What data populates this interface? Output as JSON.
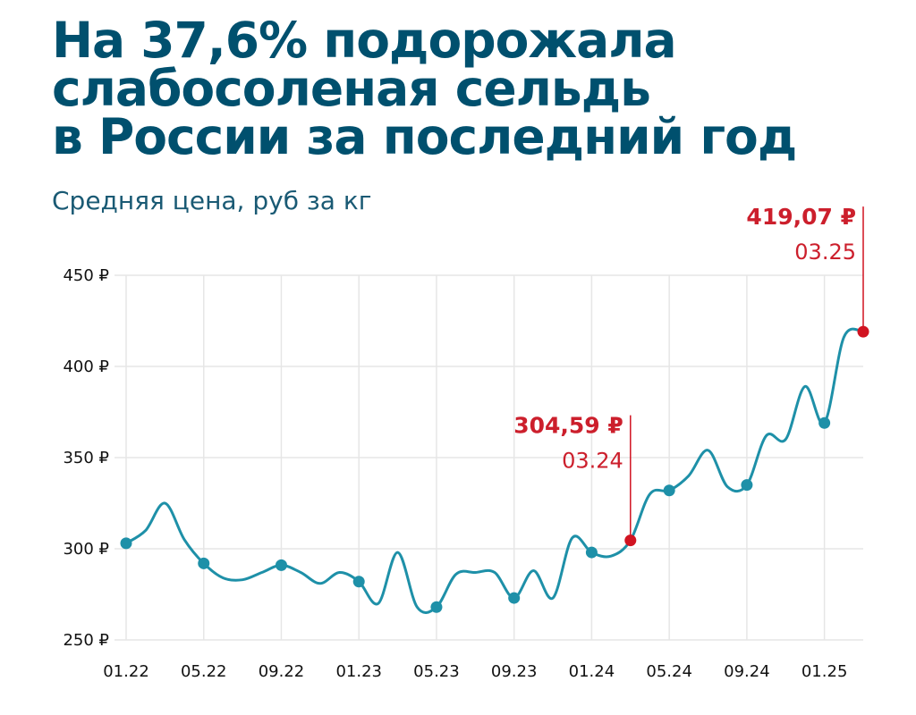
{
  "chart_data": {
    "type": "line",
    "title_lines": [
      "На 37,6% подорожала",
      "слабосоленая сельдь",
      "в России за последний год"
    ],
    "subtitle": "Средняя цена, руб за кг",
    "y_ticks": [
      {
        "value": 250,
        "label": "250 ₽"
      },
      {
        "value": 300,
        "label": "300 ₽"
      },
      {
        "value": 350,
        "label": "350 ₽"
      },
      {
        "value": 400,
        "label": "400 ₽"
      },
      {
        "value": 450,
        "label": "450 ₽"
      }
    ],
    "ylim": [
      250,
      450
    ],
    "x_start": "2022-01",
    "x_end": "2025-03",
    "x_ticks": [
      {
        "value": "2022-01",
        "label": "01.22"
      },
      {
        "value": "2022-05",
        "label": "05.22"
      },
      {
        "value": "2022-09",
        "label": "09.22"
      },
      {
        "value": "2023-01",
        "label": "01.23"
      },
      {
        "value": "2023-05",
        "label": "05.23"
      },
      {
        "value": "2023-09",
        "label": "09.23"
      },
      {
        "value": "2024-01",
        "label": "01.24"
      },
      {
        "value": "2024-05",
        "label": "05.24"
      },
      {
        "value": "2024-09",
        "label": "09.24"
      },
      {
        "value": "2025-01",
        "label": "01.25"
      }
    ],
    "grid": true,
    "series": [
      {
        "color": "#1e90a8",
        "points": [
          {
            "x": "2022-01",
            "y": 303
          },
          {
            "x": "2022-02",
            "y": 310
          },
          {
            "x": "2022-03",
            "y": 325
          },
          {
            "x": "2022-04",
            "y": 305
          },
          {
            "x": "2022-05",
            "y": 292
          },
          {
            "x": "2022-06",
            "y": 284
          },
          {
            "x": "2022-07",
            "y": 283
          },
          {
            "x": "2022-08",
            "y": 287
          },
          {
            "x": "2022-09",
            "y": 291
          },
          {
            "x": "2022-10",
            "y": 287
          },
          {
            "x": "2022-11",
            "y": 281
          },
          {
            "x": "2022-12",
            "y": 287
          },
          {
            "x": "2023-01",
            "y": 282
          },
          {
            "x": "2023-02",
            "y": 270
          },
          {
            "x": "2023-03",
            "y": 298
          },
          {
            "x": "2023-04",
            "y": 268
          },
          {
            "x": "2023-05",
            "y": 268
          },
          {
            "x": "2023-06",
            "y": 286
          },
          {
            "x": "2023-07",
            "y": 287
          },
          {
            "x": "2023-08",
            "y": 287
          },
          {
            "x": "2023-09",
            "y": 273
          },
          {
            "x": "2023-10",
            "y": 288
          },
          {
            "x": "2023-11",
            "y": 273
          },
          {
            "x": "2023-12",
            "y": 306
          },
          {
            "x": "2024-01",
            "y": 298
          },
          {
            "x": "2024-02",
            "y": 296
          },
          {
            "x": "2024-03",
            "y": 304.59
          },
          {
            "x": "2024-04",
            "y": 330
          },
          {
            "x": "2024-05",
            "y": 332
          },
          {
            "x": "2024-06",
            "y": 340
          },
          {
            "x": "2024-07",
            "y": 354
          },
          {
            "x": "2024-08",
            "y": 334
          },
          {
            "x": "2024-09",
            "y": 335
          },
          {
            "x": "2024-10",
            "y": 362
          },
          {
            "x": "2024-11",
            "y": 360
          },
          {
            "x": "2024-12",
            "y": 389
          },
          {
            "x": "2025-01",
            "y": 369
          },
          {
            "x": "2025-02",
            "y": 416
          },
          {
            "x": "2025-03",
            "y": 419.07
          }
        ]
      }
    ],
    "markers": [
      "2022-01",
      "2022-05",
      "2022-09",
      "2023-01",
      "2023-05",
      "2023-09",
      "2024-01",
      "2024-05",
      "2024-09",
      "2025-01"
    ],
    "annotations": [
      {
        "x": "2024-03",
        "y": 304.59,
        "value_label": "304,59 ₽",
        "date_label": "03.24",
        "color": "#d11321"
      },
      {
        "x": "2025-03",
        "y": 419.07,
        "value_label": "419,07 ₽",
        "date_label": "03.25",
        "color": "#d11321"
      }
    ]
  }
}
